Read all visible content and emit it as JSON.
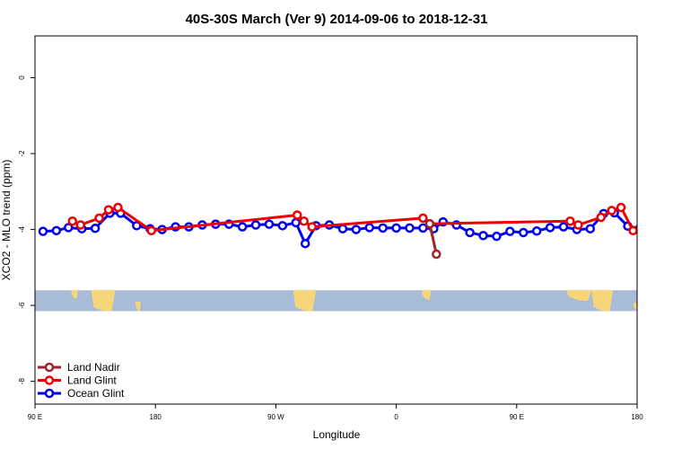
{
  "chart_data": {
    "type": "line",
    "title": "40S-30S March (Ver 9)   2014-09-06 to 2018-12-31",
    "xlabel": "Longitude",
    "ylabel": "XCO2 - MLO trend (ppm)",
    "x_axis_ticks": [
      {
        "value": 90,
        "label": "90 E"
      },
      {
        "value": 180,
        "label": "180"
      },
      {
        "value": 270,
        "label": "90 W"
      },
      {
        "value": 360,
        "label": "0"
      },
      {
        "value": 450,
        "label": "90 E"
      },
      {
        "value": 540,
        "label": "180"
      }
    ],
    "y_axis_ticks": [
      0,
      -2,
      -4,
      -6,
      -8
    ],
    "xlim": [
      90,
      540
    ],
    "ylim": [
      -8.6,
      1.1
    ],
    "grid": false,
    "legend_position": "bottom-left",
    "map_strip": {
      "y_top": -5.6,
      "y_bottom": -6.15,
      "ocean_color": "#a8bcd8",
      "land_color": "#f7d67a"
    },
    "series": [
      {
        "name": "Land Nadir",
        "color": "#a0222a",
        "points": [
          [
            385,
            -3.85
          ],
          [
            390,
            -4.65
          ]
        ]
      },
      {
        "name": "Land Glint",
        "color": "#ee0000",
        "points": [
          [
            118,
            -3.78
          ],
          [
            124,
            -3.88
          ],
          [
            138,
            -3.7
          ],
          [
            145,
            -3.48
          ],
          [
            152,
            -3.42
          ],
          [
            177,
            -4.03
          ],
          [
            286,
            -3.62
          ],
          [
            291,
            -3.78
          ],
          [
            297,
            -3.93
          ],
          [
            380,
            -3.7
          ],
          [
            385,
            -3.85
          ],
          [
            490,
            -3.78
          ],
          [
            496,
            -3.88
          ],
          [
            513,
            -3.68
          ],
          [
            521,
            -3.5
          ],
          [
            528,
            -3.42
          ],
          [
            537,
            -4.03
          ]
        ]
      },
      {
        "name": "Ocean Glint",
        "color": "#0000ee",
        "points": [
          [
            96,
            -4.05
          ],
          [
            106,
            -4.03
          ],
          [
            115,
            -3.95
          ],
          [
            125,
            -3.98
          ],
          [
            135,
            -3.97
          ],
          [
            146,
            -3.57
          ],
          [
            154,
            -3.57
          ],
          [
            166,
            -3.9
          ],
          [
            176,
            -3.98
          ],
          [
            185,
            -4.0
          ],
          [
            195,
            -3.93
          ],
          [
            205,
            -3.93
          ],
          [
            215,
            -3.88
          ],
          [
            225,
            -3.86
          ],
          [
            235,
            -3.86
          ],
          [
            245,
            -3.93
          ],
          [
            255,
            -3.88
          ],
          [
            265,
            -3.86
          ],
          [
            275,
            -3.9
          ],
          [
            285,
            -3.82
          ],
          [
            292,
            -4.37
          ],
          [
            300,
            -3.9
          ],
          [
            310,
            -3.88
          ],
          [
            320,
            -3.98
          ],
          [
            330,
            -4.0
          ],
          [
            340,
            -3.95
          ],
          [
            350,
            -3.96
          ],
          [
            360,
            -3.96
          ],
          [
            370,
            -3.96
          ],
          [
            380,
            -3.96
          ],
          [
            388,
            -3.98
          ],
          [
            395,
            -3.8
          ],
          [
            405,
            -3.88
          ],
          [
            415,
            -4.08
          ],
          [
            425,
            -4.16
          ],
          [
            435,
            -4.18
          ],
          [
            445,
            -4.05
          ],
          [
            455,
            -4.08
          ],
          [
            465,
            -4.04
          ],
          [
            475,
            -3.95
          ],
          [
            485,
            -3.93
          ],
          [
            495,
            -4.0
          ],
          [
            505,
            -3.98
          ],
          [
            515,
            -3.58
          ],
          [
            523,
            -3.56
          ],
          [
            533,
            -3.91
          ],
          [
            542,
            -3.97
          ]
        ]
      }
    ]
  }
}
